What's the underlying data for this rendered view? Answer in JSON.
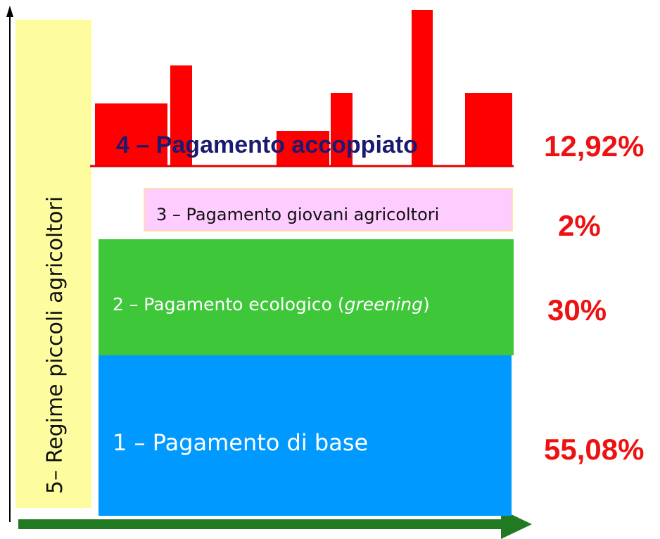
{
  "side_label": "5– Regime piccoli agricoltori",
  "tiers": [
    {
      "label": "4 – Pagamento accoppiato",
      "share": "12,92%"
    },
    {
      "label": "3 – Pagamento giovani agricoltori",
      "share": "2%"
    },
    {
      "label_parts": [
        "2 – Pagamento ecologico (",
        "greening",
        ")"
      ],
      "share": "30%"
    },
    {
      "label": "1 – Pagamento di base",
      "share": "55,08%"
    }
  ]
}
